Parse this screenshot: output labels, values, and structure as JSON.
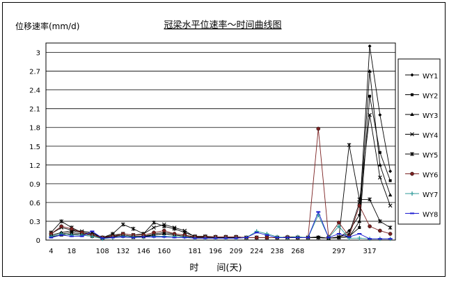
{
  "chart_data": {
    "type": "line",
    "title": "冠梁水平位速率～时间曲线图",
    "ylabel": "位移速率(mm/d)",
    "xlabel": "时　　间(天)",
    "ylim": [
      0,
      3.15
    ],
    "yticks": [
      "0",
      "0.3",
      "0.6",
      "0.9",
      "1.2",
      "1.5",
      "1.8",
      "2.1",
      "2.4",
      "2.7",
      "3"
    ],
    "xticks": [
      "4",
      "18",
      "108",
      "132",
      "146",
      "160",
      "181",
      "196",
      "209",
      "224",
      "238",
      "268",
      "297",
      "317"
    ],
    "legend_position": "right",
    "grid": "horizontal",
    "x": [
      "4",
      "11",
      "18",
      "25",
      "30",
      "108",
      "120",
      "132",
      "139",
      "146",
      "153",
      "160",
      "167",
      "174",
      "181",
      "188",
      "196",
      "202",
      "209",
      "216",
      "224",
      "231",
      "238",
      "245",
      "268",
      "277",
      "282",
      "288",
      "297",
      "305",
      "310",
      "317",
      "324",
      "330"
    ],
    "series": [
      {
        "name": "WY1",
        "marker": "diamond",
        "color": "#000000",
        "values": [
          0.08,
          0.12,
          0.15,
          0.12,
          0.1,
          0.04,
          0.06,
          0.08,
          0.06,
          0.06,
          0.08,
          0.1,
          0.08,
          0.06,
          0.04,
          0.04,
          0.04,
          0.04,
          0.04,
          0.04,
          0.04,
          0.04,
          0.04,
          0.05,
          0.05,
          0.04,
          0.05,
          0.03,
          0.04,
          0.15,
          0.4,
          3.1,
          2.0,
          1.1
        ]
      },
      {
        "name": "WY2",
        "marker": "square",
        "color": "#000000",
        "values": [
          0.06,
          0.1,
          0.12,
          0.1,
          0.08,
          0.04,
          0.05,
          0.06,
          0.05,
          0.06,
          0.1,
          0.12,
          0.1,
          0.08,
          0.05,
          0.05,
          0.05,
          0.05,
          0.05,
          0.04,
          0.04,
          0.04,
          0.04,
          0.04,
          0.04,
          0.04,
          0.04,
          0.03,
          0.04,
          0.06,
          0.2,
          2.3,
          1.4,
          0.95
        ]
      },
      {
        "name": "WY3",
        "marker": "triangle",
        "color": "#000000",
        "values": [
          0.05,
          0.08,
          0.1,
          0.08,
          0.06,
          0.03,
          0.05,
          0.06,
          0.04,
          0.05,
          0.08,
          0.1,
          0.08,
          0.06,
          0.04,
          0.04,
          0.04,
          0.04,
          0.04,
          0.04,
          0.04,
          0.04,
          0.04,
          0.04,
          0.04,
          0.04,
          0.04,
          0.03,
          0.04,
          0.05,
          0.3,
          2.7,
          1.2,
          0.72
        ]
      },
      {
        "name": "WY4",
        "marker": "x",
        "color": "#000000",
        "values": [
          0.1,
          0.2,
          0.16,
          0.14,
          0.12,
          0.04,
          0.08,
          0.1,
          0.08,
          0.1,
          0.2,
          0.25,
          0.2,
          0.15,
          0.05,
          0.05,
          0.05,
          0.05,
          0.05,
          0.04,
          0.04,
          0.04,
          0.04,
          0.04,
          0.04,
          0.04,
          0.04,
          0.03,
          0.05,
          0.1,
          0.6,
          2.0,
          1.0,
          0.55
        ]
      },
      {
        "name": "WY5",
        "marker": "star",
        "color": "#000000",
        "values": [
          0.12,
          0.3,
          0.2,
          0.12,
          0.08,
          0.04,
          0.1,
          0.25,
          0.18,
          0.1,
          0.28,
          0.22,
          0.18,
          0.12,
          0.06,
          0.06,
          0.05,
          0.05,
          0.05,
          0.04,
          0.04,
          0.04,
          0.04,
          0.04,
          0.04,
          0.04,
          0.04,
          0.03,
          0.04,
          1.52,
          0.65,
          0.65,
          0.3,
          0.2
        ]
      },
      {
        "name": "WY6",
        "marker": "circle",
        "color": "#7a2020",
        "values": [
          0.1,
          0.22,
          0.18,
          0.12,
          0.08,
          0.04,
          0.06,
          0.1,
          0.08,
          0.08,
          0.12,
          0.15,
          0.1,
          0.08,
          0.05,
          0.05,
          0.05,
          0.05,
          0.05,
          0.04,
          0.04,
          0.04,
          0.04,
          0.05,
          0.04,
          0.04,
          1.78,
          0.05,
          0.28,
          0.06,
          0.55,
          0.22,
          0.15,
          0.1
        ]
      },
      {
        "name": "WY7",
        "marker": "plus",
        "color": "#2f9a9a",
        "values": [
          0.06,
          0.1,
          0.08,
          0.08,
          0.06,
          0.02,
          0.04,
          0.06,
          0.05,
          0.05,
          0.06,
          0.06,
          0.06,
          0.05,
          0.03,
          0.03,
          0.03,
          0.03,
          0.03,
          0.04,
          0.14,
          0.1,
          0.05,
          0.04,
          0.05,
          0.04,
          0.4,
          0.04,
          0.22,
          0.03,
          0.03,
          0.02,
          0.02,
          0.02
        ]
      },
      {
        "name": "WY8",
        "marker": "dash",
        "color": "#1a1ad0",
        "values": [
          0.04,
          0.08,
          0.06,
          0.06,
          0.14,
          0.03,
          0.04,
          0.05,
          0.04,
          0.05,
          0.05,
          0.05,
          0.04,
          0.04,
          0.03,
          0.03,
          0.03,
          0.03,
          0.03,
          0.04,
          0.12,
          0.08,
          0.04,
          0.04,
          0.04,
          0.04,
          0.45,
          0.04,
          0.1,
          0.05,
          0.1,
          0.02,
          0.02,
          0.02
        ]
      }
    ]
  }
}
